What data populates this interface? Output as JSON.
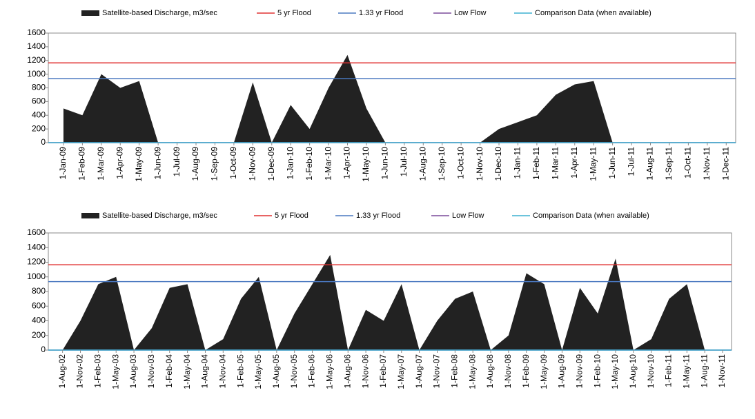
{
  "chart_data": [
    {
      "type": "area",
      "categories": [
        "1-Jan-09",
        "1-Feb-09",
        "1-Mar-09",
        "1-Apr-09",
        "1-May-09",
        "1-Jun-09",
        "1-Jul-09",
        "1-Aug-09",
        "1-Sep-09",
        "1-Oct-09",
        "1-Nov-09",
        "1-Dec-09",
        "1-Jan-10",
        "1-Feb-10",
        "1-Mar-10",
        "1-Apr-10",
        "1-May-10",
        "1-Jun-10",
        "1-Jul-10",
        "1-Aug-10",
        "1-Sep-10",
        "1-Oct-10",
        "1-Nov-10",
        "1-Dec-10",
        "1-Jan-11",
        "1-Feb-11",
        "1-Mar-11",
        "1-Apr-11",
        "1-May-11",
        "1-Jun-11",
        "1-Jul-11",
        "1-Aug-11",
        "1-Sep-11",
        "1-Oct-11",
        "1-Nov-11",
        "1-Dec-11"
      ],
      "series": [
        {
          "name": "Satellite-based Discharge, m3/sec",
          "color": "#222222",
          "values": [
            500,
            400,
            1000,
            800,
            900,
            0,
            0,
            0,
            0,
            0,
            880,
            0,
            550,
            200,
            800,
            1280,
            500,
            0,
            0,
            0,
            0,
            0,
            0,
            200,
            300,
            400,
            700,
            850,
            900,
            0,
            0,
            0,
            0,
            0,
            0,
            0
          ]
        }
      ],
      "reference_lines": [
        {
          "name": "5 yr Flood",
          "color": "#e03030",
          "value": 1165
        },
        {
          "name": "1.33 yr Flood",
          "color": "#4a78c0",
          "value": 935
        },
        {
          "name": "Low Flow",
          "color": "#7a4a9a",
          "value": 0
        },
        {
          "name": "Comparison Data (when available)",
          "color": "#3cb0d0",
          "value": 0
        }
      ],
      "ylim": [
        0,
        1600
      ],
      "yticks": [
        0,
        200,
        400,
        600,
        800,
        1000,
        1200,
        1400,
        1600
      ]
    },
    {
      "type": "area",
      "categories": [
        "1-Aug-02",
        "1-Nov-02",
        "1-Feb-03",
        "1-May-03",
        "1-Aug-03",
        "1-Nov-03",
        "1-Feb-04",
        "1-May-04",
        "1-Aug-04",
        "1-Nov-04",
        "1-Feb-05",
        "1-May-05",
        "1-Aug-05",
        "1-Nov-05",
        "1-Feb-06",
        "1-May-06",
        "1-Aug-06",
        "1-Nov-06",
        "1-Feb-07",
        "1-May-07",
        "1-Aug-07",
        "1-Nov-07",
        "1-Feb-08",
        "1-May-08",
        "1-Aug-08",
        "1-Nov-08",
        "1-Feb-09",
        "1-May-09",
        "1-Aug-09",
        "1-Nov-09",
        "1-Feb-10",
        "1-May-10",
        "1-Aug-10",
        "1-Nov-10",
        "1-Feb-11",
        "1-May-11",
        "1-Aug-11",
        "1-Nov-11"
      ],
      "series": [
        {
          "name": "Satellite-based Discharge, m3/sec",
          "color": "#222222",
          "values": [
            0,
            400,
            900,
            1000,
            0,
            300,
            850,
            900,
            0,
            150,
            700,
            1000,
            0,
            500,
            900,
            1300,
            0,
            550,
            400,
            900,
            0,
            400,
            700,
            800,
            0,
            200,
            1050,
            900,
            0,
            850,
            500,
            1250,
            0,
            150,
            700,
            900,
            0,
            0
          ]
        }
      ],
      "reference_lines": [
        {
          "name": "5 yr Flood",
          "color": "#e03030",
          "value": 1165
        },
        {
          "name": "1.33 yr Flood",
          "color": "#4a78c0",
          "value": 935
        },
        {
          "name": "Low Flow",
          "color": "#7a4a9a",
          "value": 0
        },
        {
          "name": "Comparison Data (when available)",
          "color": "#3cb0d0",
          "value": 0
        }
      ],
      "ylim": [
        0,
        1600
      ],
      "yticks": [
        0,
        200,
        400,
        600,
        800,
        1000,
        1200,
        1400,
        1600
      ]
    }
  ]
}
